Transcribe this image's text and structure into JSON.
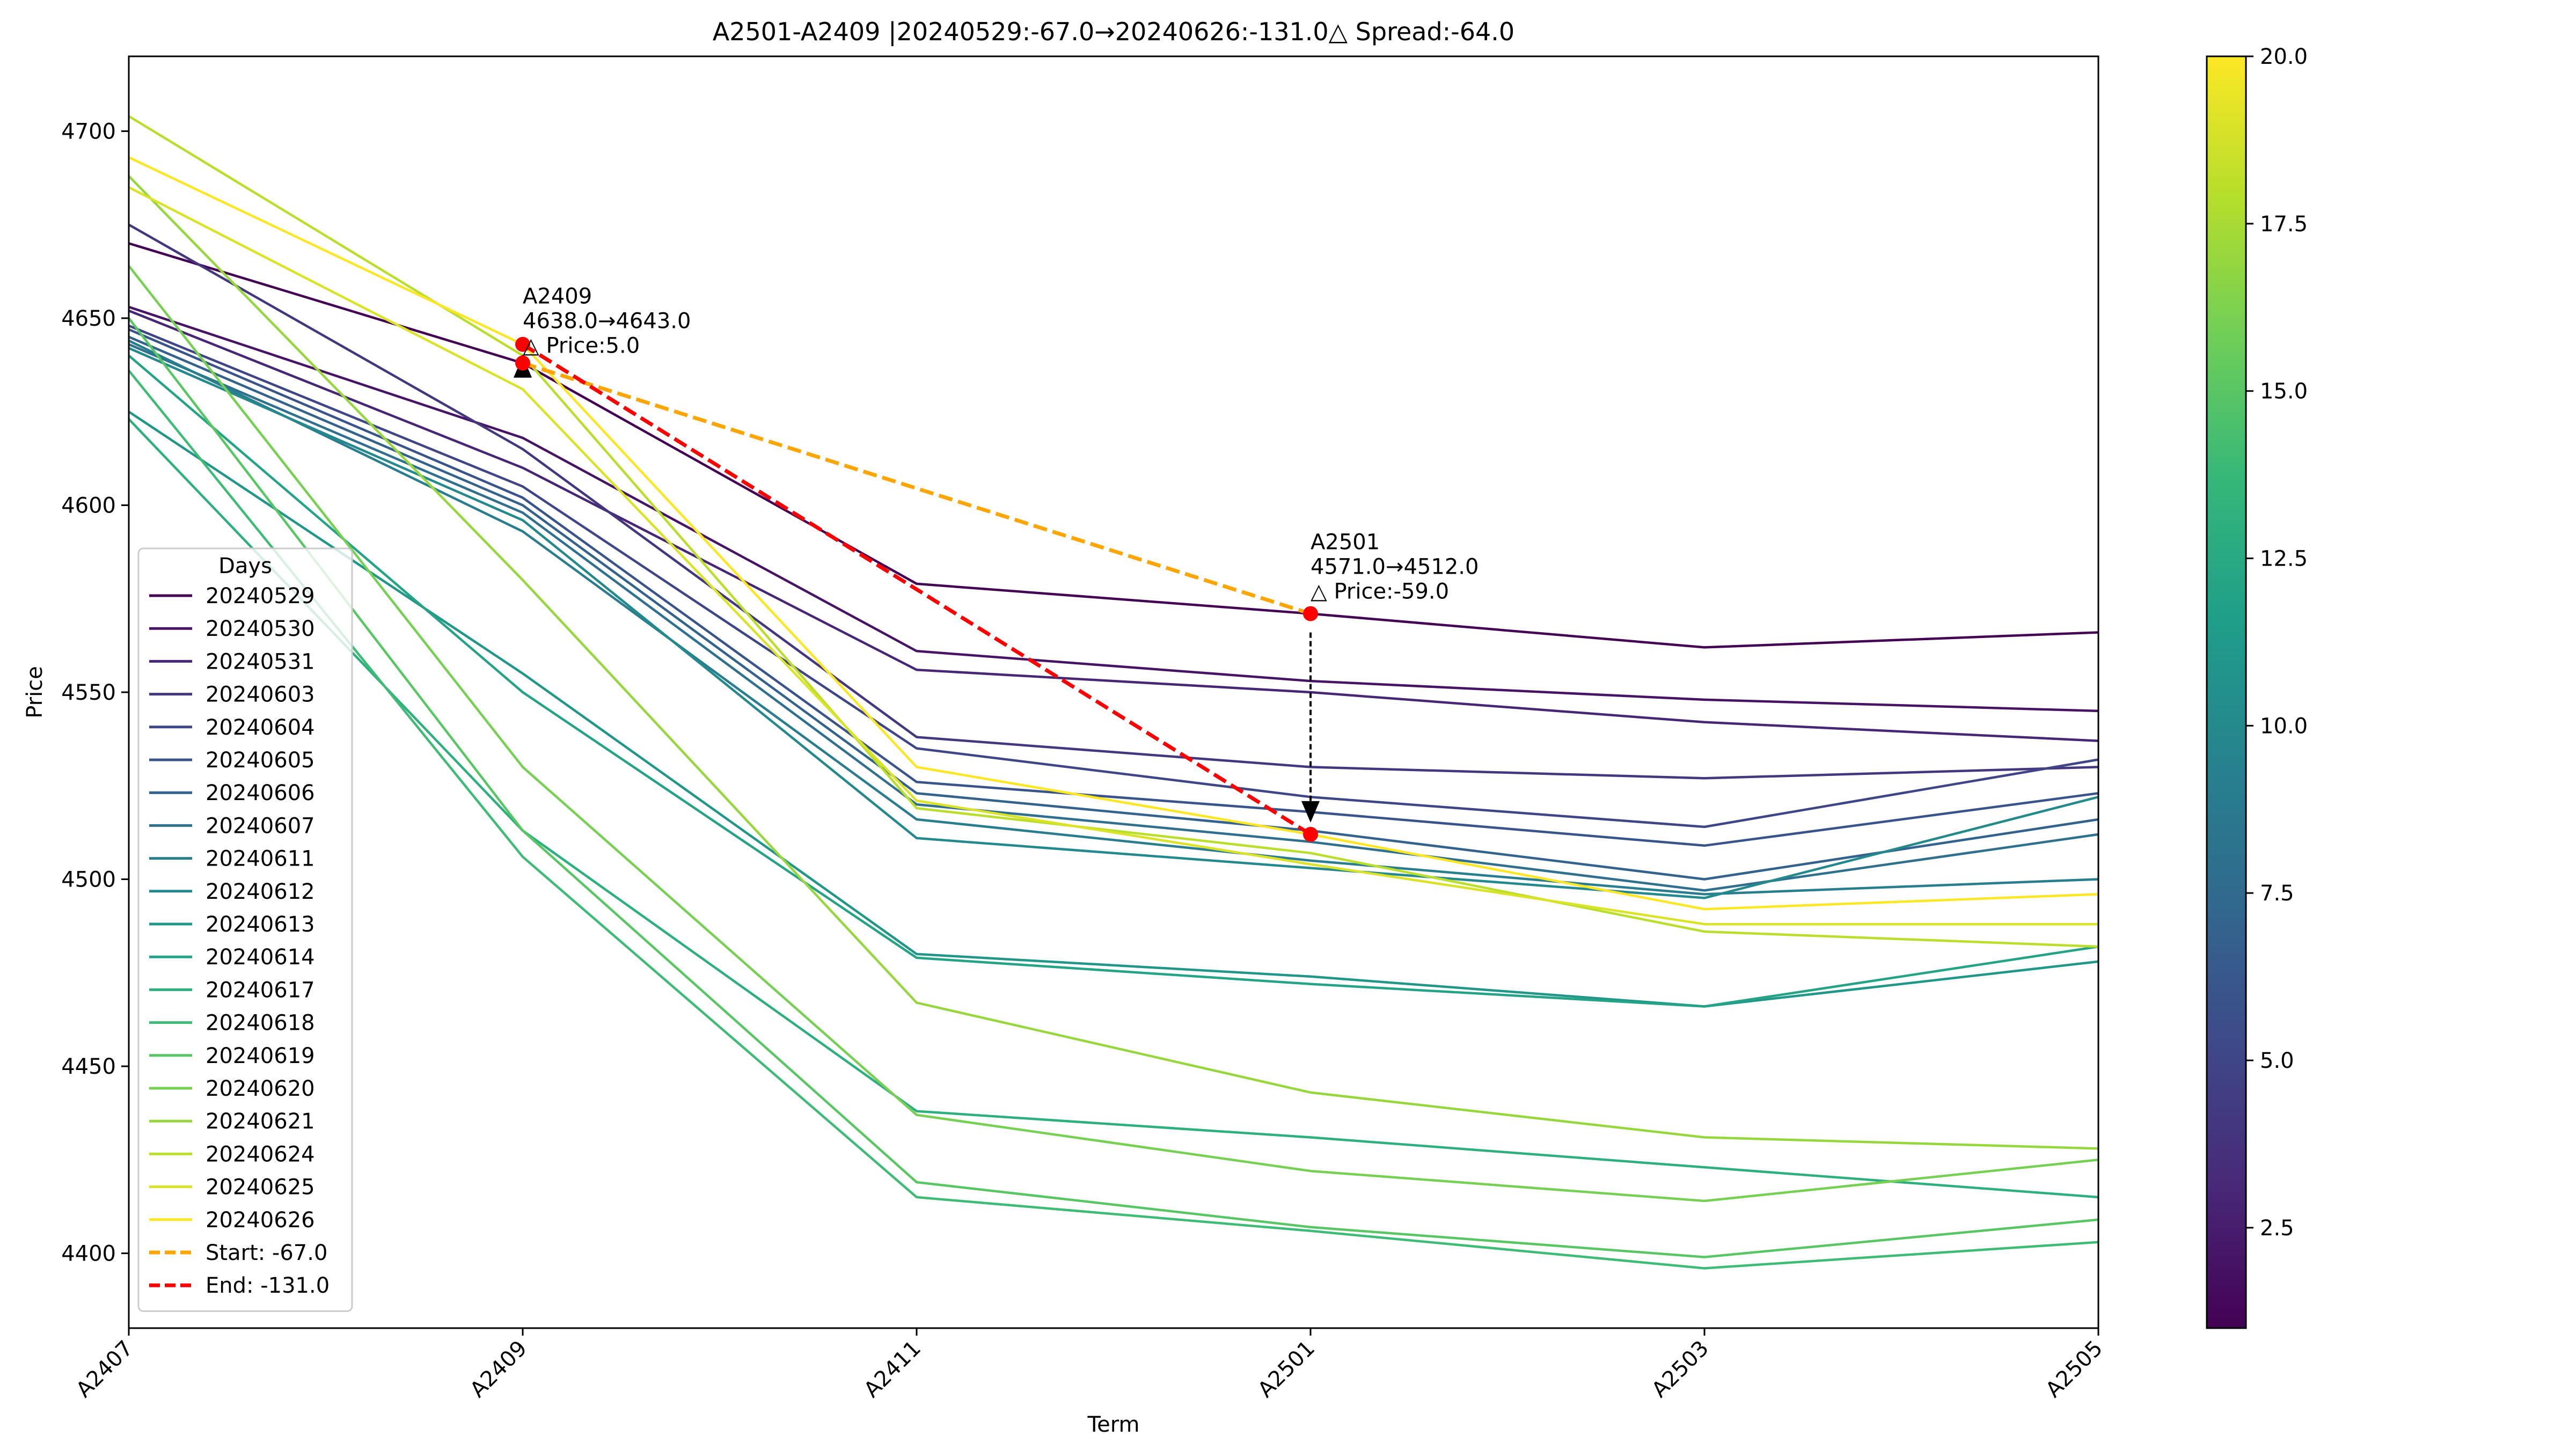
{
  "chart_data": {
    "type": "line",
    "title": "A2501-A2409 |20240529:-67.0→20240626:-131.0△ Spread:-64.0",
    "xlabel": "Term",
    "ylabel": "Price",
    "categories": [
      "A2407",
      "A2409",
      "A2411",
      "A2501",
      "A2503",
      "A2505"
    ],
    "ylim": [
      4380,
      4720
    ],
    "yticks": [
      4400,
      4450,
      4500,
      4550,
      4600,
      4650,
      4700
    ],
    "grid": false,
    "legend": {
      "title": "Days",
      "placement": "lower-left"
    },
    "colorbar": {
      "colormap": "viridis",
      "range": [
        1,
        20
      ],
      "ticks": [
        2.5,
        5.0,
        7.5,
        10.0,
        12.5,
        15.0,
        17.5,
        20.0
      ],
      "stops": [
        "#440154",
        "#482878",
        "#3e4989",
        "#31688e",
        "#26828e",
        "#1f9e89",
        "#35b779",
        "#6ece58",
        "#b5de2b",
        "#fde725"
      ]
    },
    "series": [
      {
        "name": "20240529",
        "colorValue": 1,
        "values": [
          4670,
          4638,
          4579,
          4571,
          4562,
          4566
        ]
      },
      {
        "name": "20240530",
        "colorValue": 2,
        "values": [
          4653,
          4618,
          4561,
          4553,
          4548,
          4545
        ]
      },
      {
        "name": "20240531",
        "colorValue": 3,
        "values": [
          4652,
          4610,
          4556,
          4550,
          4542,
          4537
        ]
      },
      {
        "name": "20240603",
        "colorValue": 4,
        "values": [
          4675,
          4615,
          4538,
          4530,
          4527,
          4530
        ]
      },
      {
        "name": "20240604",
        "colorValue": 5,
        "values": [
          4648,
          4605,
          4535,
          4522,
          4514,
          4532
        ]
      },
      {
        "name": "20240605",
        "colorValue": 6,
        "values": [
          4647,
          4602,
          4526,
          4518,
          4509,
          4523
        ]
      },
      {
        "name": "20240606",
        "colorValue": 7,
        "values": [
          4645,
          4600,
          4523,
          4513,
          4500,
          4516
        ]
      },
      {
        "name": "20240607",
        "colorValue": 8,
        "values": [
          4643,
          4598,
          4520,
          4510,
          4497,
          4512
        ]
      },
      {
        "name": "20240611",
        "colorValue": 9,
        "values": [
          4644,
          4593,
          4516,
          4505,
          4496,
          4500
        ]
      },
      {
        "name": "20240612",
        "colorValue": 10,
        "values": [
          4642,
          4596,
          4511,
          4503,
          4495,
          4522
        ]
      },
      {
        "name": "20240613",
        "colorValue": 11,
        "values": [
          4625,
          4555,
          4480,
          4474,
          4466,
          4478
        ]
      },
      {
        "name": "20240614",
        "colorValue": 12,
        "values": [
          4640,
          4550,
          4479,
          4472,
          4466,
          4482
        ]
      },
      {
        "name": "20240617",
        "colorValue": 13,
        "values": [
          4623,
          4513,
          4438,
          4431,
          4423,
          4415
        ]
      },
      {
        "name": "20240618",
        "colorValue": 14,
        "values": [
          4636,
          4506,
          4415,
          4406,
          4396,
          4403
        ]
      },
      {
        "name": "20240619",
        "colorValue": 15,
        "values": [
          4650,
          4513,
          4419,
          4407,
          4399,
          4409
        ]
      },
      {
        "name": "20240620",
        "colorValue": 16,
        "values": [
          4664,
          4530,
          4437,
          4422,
          4414,
          4425
        ]
      },
      {
        "name": "20240621",
        "colorValue": 17,
        "values": [
          4688,
          4580,
          4467,
          4443,
          4431,
          4428
        ]
      },
      {
        "name": "20240624",
        "colorValue": 18,
        "values": [
          4704,
          4640,
          4519,
          4507,
          4486,
          4482
        ]
      },
      {
        "name": "20240625",
        "colorValue": 19,
        "values": [
          4685,
          4631,
          4521,
          4504,
          4488,
          4488
        ]
      },
      {
        "name": "20240626",
        "colorValue": 20,
        "values": [
          4693,
          4643,
          4530,
          4512,
          4492,
          4496
        ]
      }
    ],
    "spread_lines": [
      {
        "name": "Start: -67.0",
        "color": "#ffa500",
        "x": [
          "A2409",
          "A2501"
        ],
        "values": [
          4638,
          4571
        ]
      },
      {
        "name": "End: -131.0",
        "color": "#ff0000",
        "x": [
          "A2409",
          "A2501"
        ],
        "values": [
          4643,
          4512
        ]
      }
    ],
    "annotations": [
      {
        "x": "A2409",
        "from": 4638,
        "to": 4643,
        "lines": [
          "A2409",
          "4638.0→4643.0",
          "△ Price:5.0"
        ]
      },
      {
        "x": "A2501",
        "from": 4571,
        "to": 4512,
        "lines": [
          "A2501",
          "4571.0→4512.0",
          "△ Price:-59.0"
        ]
      }
    ]
  }
}
